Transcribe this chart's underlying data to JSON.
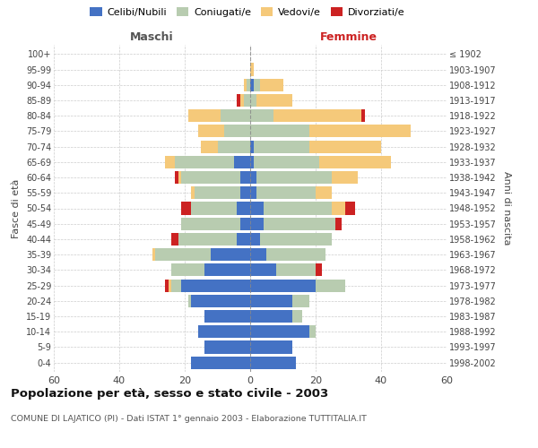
{
  "age_groups": [
    "0-4",
    "5-9",
    "10-14",
    "15-19",
    "20-24",
    "25-29",
    "30-34",
    "35-39",
    "40-44",
    "45-49",
    "50-54",
    "55-59",
    "60-64",
    "65-69",
    "70-74",
    "75-79",
    "80-84",
    "85-89",
    "90-94",
    "95-99",
    "100+"
  ],
  "birth_years": [
    "1998-2002",
    "1993-1997",
    "1988-1992",
    "1983-1987",
    "1978-1982",
    "1973-1977",
    "1968-1972",
    "1963-1967",
    "1958-1962",
    "1953-1957",
    "1948-1952",
    "1943-1947",
    "1938-1942",
    "1933-1937",
    "1928-1932",
    "1923-1927",
    "1918-1922",
    "1913-1917",
    "1908-1912",
    "1903-1907",
    "≤ 1902"
  ],
  "maschi": {
    "celibi": [
      18,
      14,
      16,
      14,
      18,
      21,
      14,
      12,
      4,
      3,
      4,
      3,
      3,
      5,
      0,
      0,
      0,
      0,
      0,
      0,
      0
    ],
    "coniugati": [
      0,
      0,
      0,
      0,
      1,
      3,
      10,
      17,
      18,
      18,
      14,
      14,
      18,
      18,
      10,
      8,
      9,
      2,
      1,
      0,
      0
    ],
    "vedovi": [
      0,
      0,
      0,
      0,
      0,
      1,
      0,
      1,
      0,
      0,
      0,
      1,
      1,
      3,
      5,
      8,
      10,
      1,
      1,
      0,
      0
    ],
    "divorziati": [
      0,
      0,
      0,
      0,
      0,
      1,
      0,
      0,
      2,
      0,
      3,
      0,
      1,
      0,
      0,
      0,
      0,
      1,
      0,
      0,
      0
    ]
  },
  "femmine": {
    "nubili": [
      14,
      13,
      18,
      13,
      13,
      20,
      8,
      5,
      3,
      4,
      4,
      2,
      2,
      1,
      1,
      0,
      0,
      0,
      1,
      0,
      0
    ],
    "coniugate": [
      0,
      0,
      2,
      3,
      5,
      9,
      12,
      18,
      22,
      22,
      21,
      18,
      23,
      20,
      17,
      18,
      7,
      2,
      2,
      0,
      0
    ],
    "vedove": [
      0,
      0,
      0,
      0,
      0,
      0,
      0,
      0,
      0,
      0,
      4,
      5,
      8,
      22,
      22,
      31,
      27,
      11,
      7,
      1,
      0
    ],
    "divorziate": [
      0,
      0,
      0,
      0,
      0,
      0,
      2,
      0,
      0,
      2,
      3,
      0,
      0,
      0,
      0,
      0,
      1,
      0,
      0,
      0,
      0
    ]
  },
  "colors": {
    "celibi": "#4472C4",
    "coniugati": "#B8CCB0",
    "vedovi": "#F5C97A",
    "divorziati": "#CC2222"
  },
  "title": "Popolazione per età, sesso e stato civile - 2003",
  "subtitle": "COMUNE DI LAJATICO (PI) - Dati ISTAT 1° gennaio 2003 - Elaborazione TUTTITALIA.IT",
  "xlabel_left": "Maschi",
  "xlabel_right": "Femmine",
  "ylabel_left": "Fasce di età",
  "ylabel_right": "Anni di nascita",
  "xlim": 60,
  "background_color": "#ffffff",
  "grid_color": "#cccccc"
}
